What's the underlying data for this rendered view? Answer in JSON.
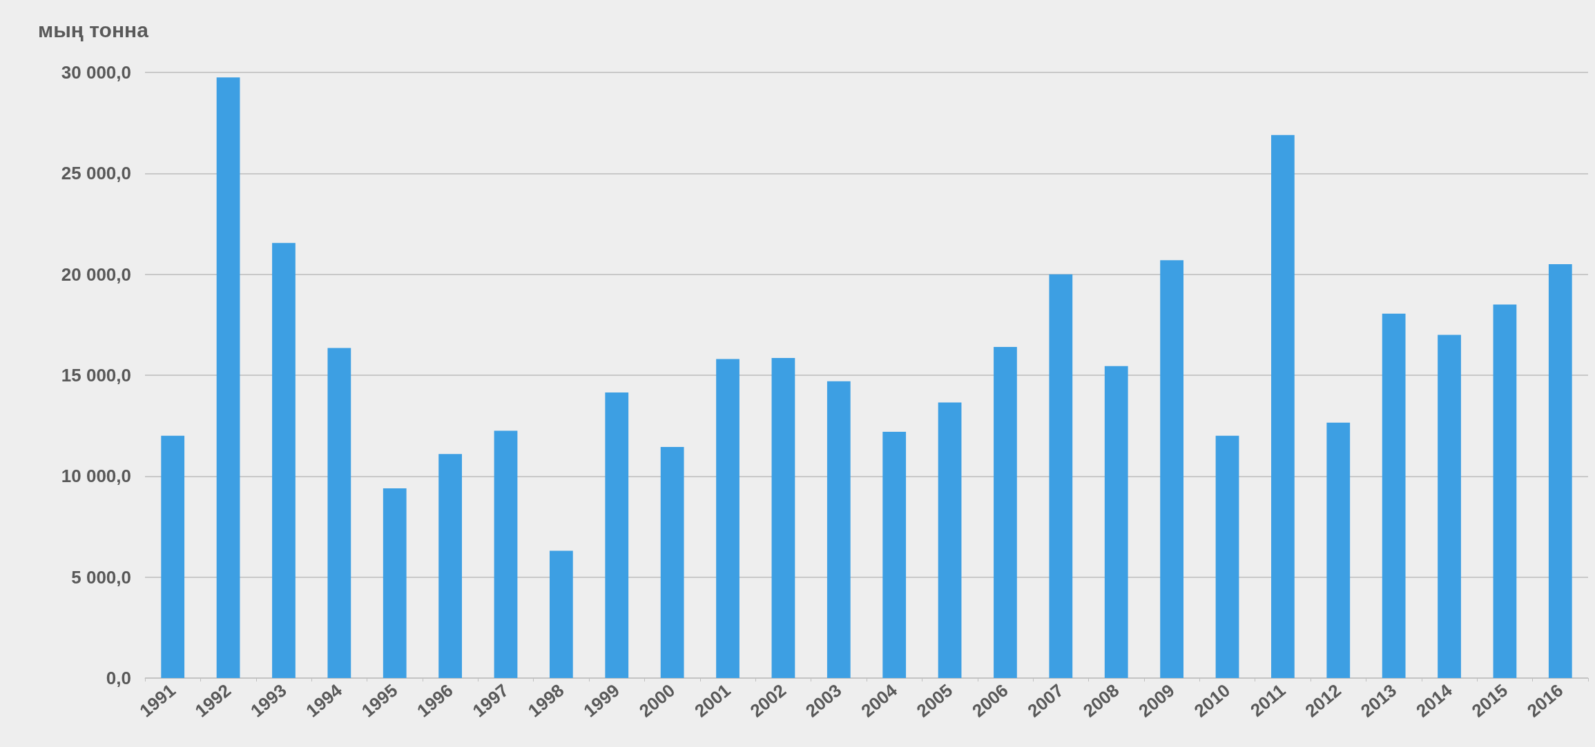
{
  "chart_data": {
    "type": "bar",
    "ylabel": "мың тонна",
    "categories": [
      "1991",
      "1992",
      "1993",
      "1994",
      "1995",
      "1996",
      "1997",
      "1998",
      "1999",
      "2000",
      "2001",
      "2002",
      "2003",
      "2004",
      "2005",
      "2006",
      "2007",
      "2008",
      "2009",
      "2010",
      "2011",
      "2012",
      "2013",
      "2014",
      "2015",
      "2016"
    ],
    "values": [
      12000,
      29750,
      21550,
      16350,
      9400,
      11100,
      12250,
      6300,
      14150,
      11450,
      15800,
      15850,
      14700,
      12200,
      13650,
      16400,
      20000,
      15450,
      20700,
      12000,
      26900,
      12650,
      18050,
      17000,
      18500,
      20500
    ],
    "color": "#3d9fe3",
    "ylim": [
      0,
      30000
    ],
    "yticks": [
      {
        "value": 0,
        "label": "0,0"
      },
      {
        "value": 5000,
        "label": "5 000,0"
      },
      {
        "value": 10000,
        "label": "10 000,0"
      },
      {
        "value": 15000,
        "label": "15 000,0"
      },
      {
        "value": 20000,
        "label": "20 000,0"
      },
      {
        "value": 25000,
        "label": "25 000,0"
      },
      {
        "value": 30000,
        "label": "30 000,0"
      }
    ],
    "grid": "y"
  }
}
